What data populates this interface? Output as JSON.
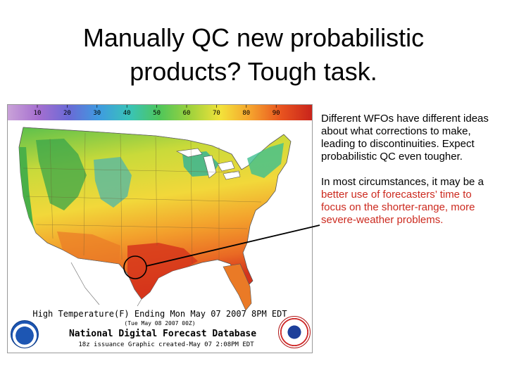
{
  "slide": {
    "title_line1": "Manually QC new probabilistic",
    "title_line2": "products? Tough task."
  },
  "map": {
    "color_scale_ticks": [
      "10",
      "20",
      "30",
      "40",
      "50",
      "60",
      "70",
      "80",
      "90"
    ],
    "scale_colors": [
      "#c9a2d8",
      "#a66fd0",
      "#6a6ad6",
      "#3f9be0",
      "#39c3b8",
      "#4fc65a",
      "#9fd23c",
      "#f3e23a",
      "#f5a12d",
      "#e8531f",
      "#c9241b"
    ],
    "caption_line1": "High Temperature(F) Ending Mon May 07 2007 8PM EDT",
    "caption_line2": "(Tue May 08 2007 00Z)",
    "caption_line3": "National Digital Forecast Database",
    "caption_line4": "18z issuance        Graphic created-May 07  2:08PM EDT",
    "noaa_logo_text": "NOAA",
    "nws_logo_text": "NATIONAL WEATHER SERVICE"
  },
  "text": {
    "para1": "Different WFOs have different ideas about what corrections to make, leading to discontinuities. Expect probabilistic QC even tougher.",
    "para2_black": "In most circumstances, it may be a ",
    "para2_red": "better use of forecasters’ time to focus on the shorter-range, more severe-weather problems."
  }
}
